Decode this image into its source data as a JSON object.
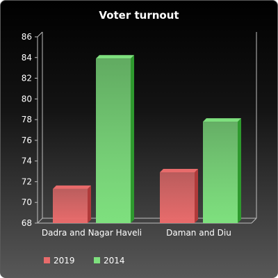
{
  "chart_data": {
    "type": "bar",
    "title": "Voter turnout",
    "xlabel": "",
    "ylabel": "",
    "categories": [
      "Dadra and Nagar Haveli",
      "Daman and Diu"
    ],
    "series": [
      {
        "name": "2019",
        "values": [
          71.3,
          72.9
        ],
        "color": "#e86b6b"
      },
      {
        "name": "2014",
        "values": [
          83.9,
          77.8
        ],
        "color": "#7ee07e"
      }
    ],
    "ylim": [
      68,
      86
    ],
    "yticks": [
      "68",
      "70",
      "72",
      "74",
      "76",
      "78",
      "80",
      "82",
      "84",
      "86"
    ],
    "grid": false,
    "legend_position": "bottom-left"
  },
  "colors": {
    "text": "#ffffff",
    "axis": "#bfbfbf",
    "red_dark": "#b03a3a",
    "green_dark": "#2e9a2e"
  }
}
